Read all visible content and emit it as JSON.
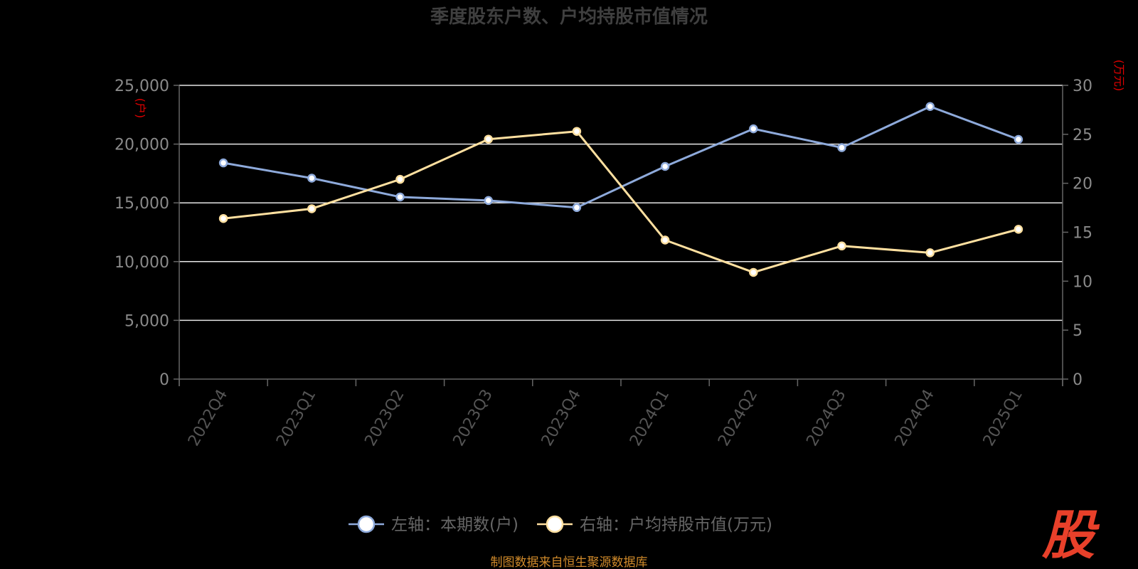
{
  "chart_data": {
    "type": "line",
    "title": "季度股东户数、户均持股市值情况",
    "categories": [
      "2022Q4",
      "2023Q1",
      "2023Q2",
      "2023Q3",
      "2023Q4",
      "2024Q1",
      "2024Q2",
      "2024Q3",
      "2024Q4",
      "2025Q1"
    ],
    "left_axis": {
      "unit": "(户)",
      "ylim": [
        0,
        25000
      ],
      "ticks": [
        "0",
        "5,000",
        "10,000",
        "15,000",
        "20,000",
        "25,000"
      ]
    },
    "right_axis": {
      "unit": "(万元)",
      "ylim": [
        0,
        30
      ],
      "ticks": [
        "0",
        "5",
        "10",
        "15",
        "20",
        "25",
        "30"
      ]
    },
    "series": [
      {
        "name": "左轴：本期数(户)",
        "axis": "left",
        "color": "#8eaadb",
        "values": [
          18400,
          17100,
          15500,
          15200,
          14600,
          18100,
          21300,
          19700,
          23200,
          20400
        ]
      },
      {
        "name": "右轴：户均持股市值(万元)",
        "axis": "right",
        "color": "#ffe0a0",
        "values": [
          16.4,
          17.4,
          20.4,
          24.5,
          25.3,
          14.2,
          10.9,
          13.6,
          12.9,
          15.3
        ]
      }
    ],
    "grid": true,
    "legend_position": "bottom-center"
  },
  "footer": {
    "source": "制图数据来自恒生聚源数据库"
  },
  "logo": {
    "text": "股",
    "color": "#e8402a"
  }
}
